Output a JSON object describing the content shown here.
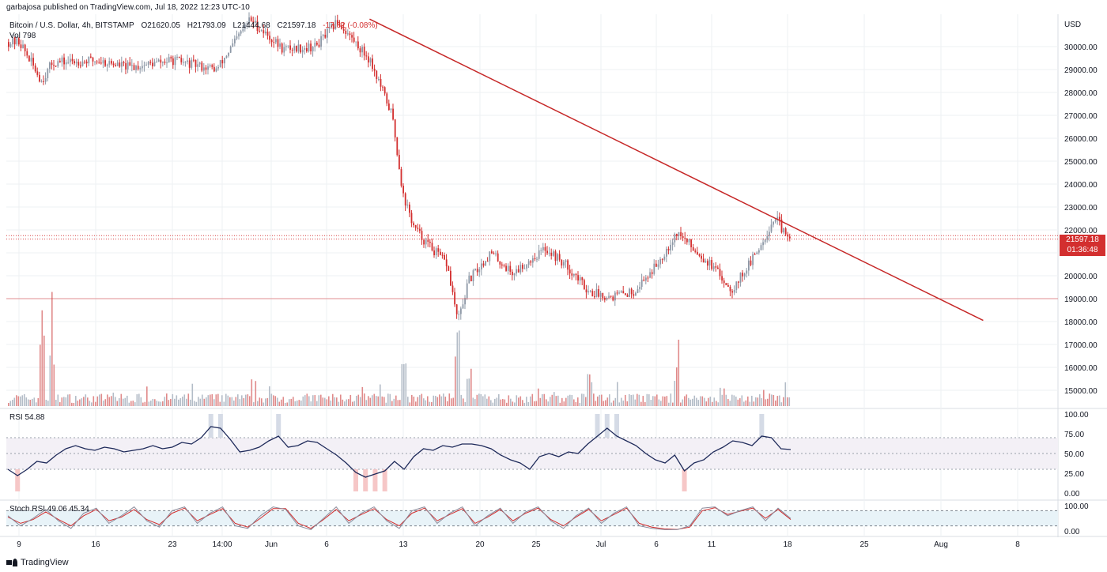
{
  "header": {
    "published_by": "garbajosa published on TradingView.com, Jul 18, 2022 12:23 UTC-10"
  },
  "legend": {
    "symbol": "Bitcoin / U.S. Dollar, 4h, BITSTAMP",
    "open": "O21620.05",
    "high": "H21793.09",
    "low": "L21444.68",
    "close": "C21597.18",
    "change": "-17.82 (-0.08%)",
    "volume": "Vol 798",
    "rsi": "RSI  54.88",
    "stoch": "Stoch RSI  49.06  45.34"
  },
  "price_labels": {
    "last_price": "21597.18",
    "countdown": "01:36:48"
  },
  "footer": {
    "brand": "TradingView"
  },
  "colors": {
    "up": "#8d98a6",
    "down": "#d32f2f",
    "trendline": "#c62828",
    "grid": "#eef0f3",
    "rsi_line": "#1e2a5a",
    "stoch_k": "#8a8a9a",
    "stoch_d": "#d32f2f"
  },
  "chart_data": [
    {
      "type": "candlestick",
      "currency": "USD",
      "ylim": [
        14600,
        31200
      ],
      "y_ticks": [
        30000,
        29000,
        28000,
        27000,
        26000,
        25000,
        24000,
        23000,
        22000,
        21000,
        20000,
        19000,
        18000,
        17000,
        16000,
        15000
      ],
      "x_ticks": [
        "9",
        "16",
        "23",
        "14:00",
        "Jun",
        "6",
        "13",
        "20",
        "25",
        "Jul",
        "6",
        "11",
        "18",
        "25",
        "Aug",
        "8"
      ],
      "approx_close_path": [
        {
          "date": "2022-05-09",
          "price": 30200
        },
        {
          "date": "2022-05-11",
          "price": 28500
        },
        {
          "date": "2022-05-12",
          "price": 29300
        },
        {
          "date": "2022-05-16",
          "price": 29400
        },
        {
          "date": "2022-05-19",
          "price": 29100
        },
        {
          "date": "2022-05-23",
          "price": 29400
        },
        {
          "date": "2022-05-27",
          "price": 29000
        },
        {
          "date": "2022-05-30",
          "price": 31200
        },
        {
          "date": "2022-06-02",
          "price": 29900
        },
        {
          "date": "2022-06-05",
          "price": 30000
        },
        {
          "date": "2022-06-07",
          "price": 31100
        },
        {
          "date": "2022-06-10",
          "price": 29400
        },
        {
          "date": "2022-06-12",
          "price": 27000
        },
        {
          "date": "2022-06-13",
          "price": 23500
        },
        {
          "date": "2022-06-14",
          "price": 22100
        },
        {
          "date": "2022-06-15",
          "price": 21500
        },
        {
          "date": "2022-06-17",
          "price": 20500
        },
        {
          "date": "2022-06-18",
          "price": 18000
        },
        {
          "date": "2022-06-19",
          "price": 19800
        },
        {
          "date": "2022-06-21",
          "price": 21000
        },
        {
          "date": "2022-06-23",
          "price": 20100
        },
        {
          "date": "2022-06-26",
          "price": 21200
        },
        {
          "date": "2022-06-28",
          "price": 20400
        },
        {
          "date": "2022-06-30",
          "price": 19300
        },
        {
          "date": "2022-07-02",
          "price": 19100
        },
        {
          "date": "2022-07-04",
          "price": 19300
        },
        {
          "date": "2022-07-06",
          "price": 20400
        },
        {
          "date": "2022-07-08",
          "price": 21900
        },
        {
          "date": "2022-07-11",
          "price": 20500
        },
        {
          "date": "2022-07-13",
          "price": 19400
        },
        {
          "date": "2022-07-15",
          "price": 20800
        },
        {
          "date": "2022-07-17",
          "price": 22600
        },
        {
          "date": "2022-07-18",
          "price": 21597.18
        }
      ],
      "horizontal_levels": [
        {
          "price": 21597.18,
          "style": "dotted"
        },
        {
          "price": 21750,
          "style": "dotted"
        },
        {
          "price": 19000,
          "style": "solid"
        }
      ],
      "trendline": [
        {
          "date": "2022-06-10",
          "price": 31200
        },
        {
          "date": "2022-08-05",
          "price": 18050
        }
      ],
      "volume_spikes": [
        {
          "date": "2022-05-11",
          "level": 1.0
        },
        {
          "date": "2022-05-12",
          "level": 0.6
        },
        {
          "date": "2022-06-13",
          "level": 0.55
        },
        {
          "date": "2022-06-18",
          "level": 0.8
        },
        {
          "date": "2022-06-19",
          "level": 0.4
        },
        {
          "date": "2022-06-30",
          "level": 0.4
        },
        {
          "date": "2022-07-08",
          "level": 0.4
        }
      ]
    },
    {
      "type": "line",
      "name": "RSI",
      "ylim": [
        0,
        100
      ],
      "y_ticks": [
        100,
        75,
        50,
        25,
        0
      ],
      "band": [
        30,
        70
      ],
      "values": [
        30,
        22,
        30,
        40,
        38,
        48,
        56,
        60,
        56,
        54,
        58,
        56,
        52,
        54,
        56,
        60,
        56,
        58,
        64,
        62,
        70,
        84,
        82,
        68,
        52,
        54,
        58,
        66,
        72,
        58,
        60,
        66,
        64,
        56,
        48,
        38,
        26,
        20,
        24,
        28,
        40,
        30,
        46,
        56,
        54,
        60,
        58,
        62,
        62,
        60,
        56,
        48,
        42,
        38,
        30,
        46,
        50,
        46,
        52,
        50,
        62,
        72,
        82,
        72,
        66,
        60,
        50,
        42,
        38,
        48,
        28,
        38,
        42,
        52,
        58,
        66,
        64,
        60,
        72,
        70,
        56,
        55
      ]
    },
    {
      "type": "line",
      "name": "Stoch RSI",
      "ylim": [
        0,
        100
      ],
      "y_ticks": [
        100,
        0
      ],
      "band": [
        20,
        80
      ],
      "k_values": [
        60,
        20,
        50,
        85,
        40,
        10,
        70,
        90,
        30,
        60,
        95,
        40,
        15,
        80,
        95,
        30,
        70,
        95,
        20,
        10,
        60,
        95,
        85,
        20,
        5,
        50,
        95,
        30,
        70,
        95,
        40,
        10,
        80,
        95,
        30,
        70,
        95,
        20,
        60,
        90,
        30,
        75,
        95,
        40,
        10,
        60,
        90,
        30,
        70,
        95,
        20,
        10,
        5,
        5,
        20,
        90,
        95,
        60,
        80,
        95,
        40,
        90,
        49
      ],
      "d_values": [
        55,
        30,
        45,
        75,
        45,
        20,
        60,
        85,
        40,
        55,
        85,
        45,
        25,
        70,
        90,
        40,
        65,
        88,
        30,
        15,
        50,
        88,
        88,
        30,
        10,
        45,
        85,
        40,
        65,
        88,
        45,
        20,
        70,
        90,
        40,
        65,
        88,
        30,
        55,
        85,
        40,
        70,
        90,
        45,
        20,
        55,
        85,
        40,
        65,
        90,
        30,
        15,
        8,
        6,
        15,
        80,
        92,
        65,
        78,
        90,
        50,
        85,
        45
      ]
    }
  ]
}
